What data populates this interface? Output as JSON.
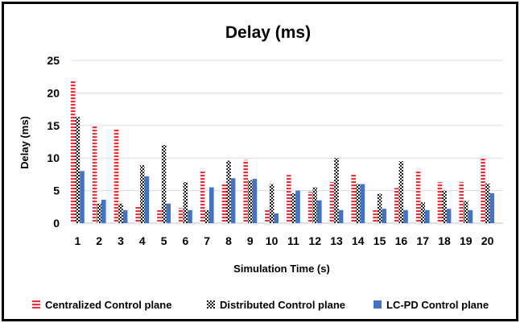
{
  "chart_data": {
    "type": "bar",
    "title": "Delay (ms)",
    "xlabel": "Simulation Time (s)",
    "ylabel": "Delay (ms)",
    "ylim": [
      0,
      25
    ],
    "yticks": [
      0,
      5,
      10,
      15,
      20,
      25
    ],
    "grid": true,
    "legend_position": "bottom",
    "categories": [
      "1",
      "2",
      "3",
      "4",
      "5",
      "6",
      "7",
      "8",
      "9",
      "10",
      "11",
      "12",
      "13",
      "14",
      "15",
      "16",
      "17",
      "18",
      "19",
      "20"
    ],
    "series": [
      {
        "name": "Centralized Control plane",
        "pattern": "horizontal-stripes",
        "color": "#e8333c",
        "values": [
          21.8,
          15.0,
          14.5,
          2.6,
          2.0,
          2.3,
          8.0,
          6.0,
          9.7,
          2.0,
          7.4,
          4.8,
          6.3,
          7.5,
          2.0,
          5.4,
          8.0,
          6.3,
          6.3,
          10.0
        ]
      },
      {
        "name": "Distributed Control plane",
        "pattern": "checkered",
        "color": "#1a1a1a",
        "values": [
          16.3,
          3.0,
          3.0,
          8.9,
          12.0,
          6.3,
          2.0,
          9.6,
          6.6,
          6.0,
          4.6,
          5.5,
          10.0,
          6.0,
          4.5,
          9.5,
          3.2,
          5.0,
          3.4,
          6.1
        ]
      },
      {
        "name": "LC-PD Control plane",
        "pattern": "solid",
        "color": "#4472c4",
        "values": [
          8.0,
          3.6,
          2.0,
          7.2,
          3.0,
          2.0,
          5.5,
          6.9,
          6.8,
          1.5,
          5.0,
          3.5,
          2.0,
          6.0,
          2.2,
          2.0,
          2.0,
          2.2,
          2.0,
          4.6
        ]
      }
    ]
  }
}
